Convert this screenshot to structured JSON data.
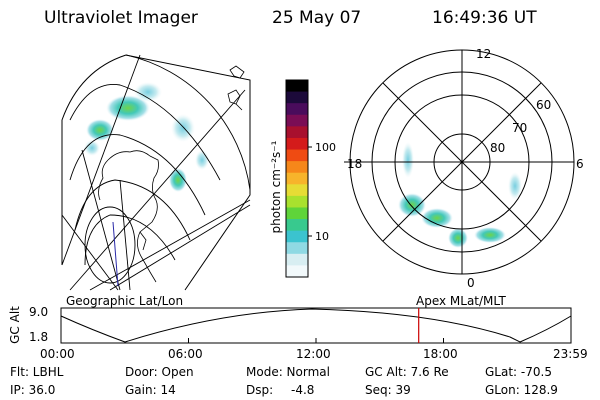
{
  "header": {
    "instrument": "Ultraviolet Imager",
    "date": "25 May 07",
    "time": "16:49:36 UT"
  },
  "colorbar": {
    "unit_label": "photon cm⁻²s⁻¹",
    "ticks": [
      "100",
      "10"
    ],
    "colors": [
      "#000000",
      "#1c0a3a",
      "#4a0c5c",
      "#7a0d55",
      "#a8102e",
      "#d41b1b",
      "#ef4b12",
      "#f6871a",
      "#f7b42b",
      "#e6dc35",
      "#a9e12e",
      "#5fd43a",
      "#38c98e",
      "#3bc3cf",
      "#8fd9e3",
      "#d8eef2",
      "#f2f9fb"
    ]
  },
  "geo_panel": {
    "label": "Geographic Lat/Lon"
  },
  "polar_panel": {
    "label": "Apex  MLat/MLT",
    "mlt_labels": {
      "top": "12",
      "left": "18",
      "right": "6",
      "bottom": "0"
    },
    "lat_labels": [
      "60",
      "70",
      "80"
    ]
  },
  "orbit": {
    "axis_label": "GC Alt",
    "y_ticks": [
      "9.0",
      "1.8"
    ],
    "x_ticks": [
      "00:00",
      "06:00",
      "12:00",
      "18:00",
      "23:59"
    ],
    "current_time_color": "#cc0000",
    "current_fraction": 0.7014
  },
  "info": {
    "filter": "Flt: LBHL",
    "ip": "IP: 36.0",
    "door": "Door: Open",
    "gain": "Gain: 14",
    "mode": "Mode: Normal",
    "dsp_label": "Dsp:",
    "dsp_value": "-4.8",
    "gc_alt": "GC Alt: 7.6 Re",
    "seq": "Seq: 39",
    "glat": "GLat: -70.5",
    "glon": "GLon: 128.9"
  }
}
